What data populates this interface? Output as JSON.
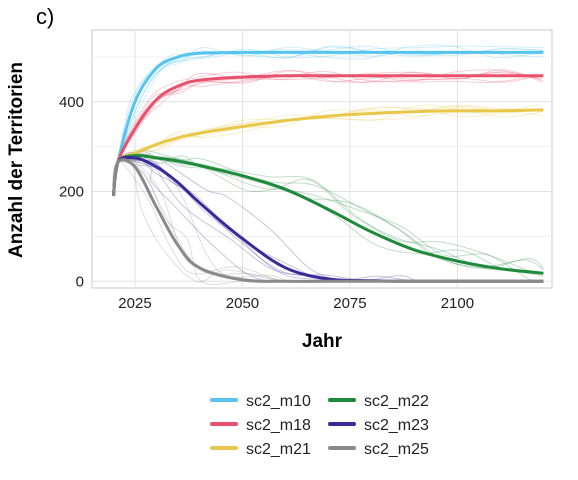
{
  "panel_label": "c)",
  "chart_data": {
    "type": "line",
    "xlabel": "Jahr",
    "ylabel": "Anzahl der Territorien",
    "xlim": [
      2015,
      2122
    ],
    "ylim": [
      -15,
      560
    ],
    "x_ticks": [
      2025,
      2050,
      2075,
      2100
    ],
    "y_ticks": [
      0,
      200,
      400
    ],
    "grid": true,
    "legend_position": "bottom",
    "x": [
      2020,
      2021,
      2025,
      2030,
      2035,
      2040,
      2050,
      2060,
      2070,
      2080,
      2090,
      2100,
      2110,
      2120
    ],
    "series": [
      {
        "name": "sc2_m10",
        "color": "#56c4ef",
        "values": [
          190,
          265,
          400,
          475,
          500,
          508,
          510,
          510,
          510,
          510,
          510,
          510,
          510,
          510
        ]
      },
      {
        "name": "sc2_m18",
        "color": "#e8506e",
        "values": [
          190,
          265,
          340,
          405,
          435,
          448,
          455,
          458,
          458,
          458,
          458,
          458,
          458,
          458
        ]
      },
      {
        "name": "sc2_m21",
        "color": "#e8c84a",
        "values": [
          190,
          265,
          285,
          305,
          320,
          330,
          345,
          358,
          368,
          374,
          378,
          380,
          380,
          382
        ]
      },
      {
        "name": "sc2_m22",
        "color": "#1f8a3c",
        "values": [
          190,
          265,
          280,
          275,
          268,
          258,
          235,
          205,
          160,
          110,
          70,
          45,
          28,
          18
        ]
      },
      {
        "name": "sc2_m23",
        "color": "#3b2a9a",
        "values": [
          190,
          265,
          275,
          255,
          220,
          175,
          95,
          30,
          5,
          1,
          0,
          0,
          0,
          0
        ]
      },
      {
        "name": "sc2_m25",
        "color": "#8a8a8a",
        "values": [
          190,
          265,
          255,
          165,
          80,
          30,
          3,
          0,
          0,
          0,
          0,
          0,
          0,
          0
        ]
      }
    ]
  }
}
